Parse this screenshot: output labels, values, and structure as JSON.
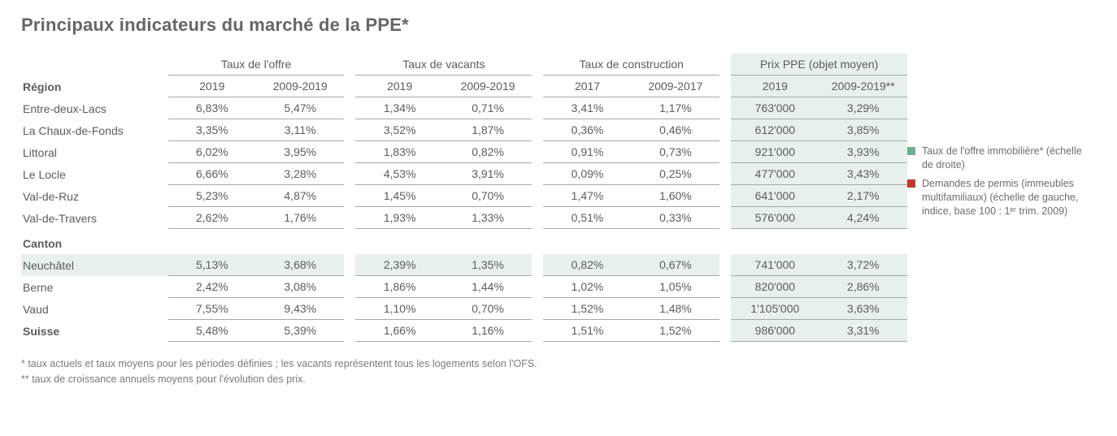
{
  "title": "Principaux indicateurs du marché de la PPE*",
  "colors": {
    "text": "#5c5c5c",
    "rule": "#a8a8a8",
    "highlight_bg": "#e7f0ea",
    "legend_green": "#6fae8f",
    "legend_red": "#c0392b",
    "background": "#ffffff"
  },
  "groups": [
    {
      "label": "Taux de l'offre",
      "sub": [
        "2019",
        "2009-2019"
      ],
      "highlight": false
    },
    {
      "label": "Taux de vacants",
      "sub": [
        "2019",
        "2009-2019"
      ],
      "highlight": false
    },
    {
      "label": "Taux de construction",
      "sub": [
        "2017",
        "2009-2017"
      ],
      "highlight": false
    },
    {
      "label": "Prix PPE (objet moyen)",
      "sub": [
        "2019",
        "2009-2019**"
      ],
      "highlight": true
    }
  ],
  "section_labels": {
    "region": "Région",
    "canton": "Canton"
  },
  "region_rows": [
    {
      "label": "Entre-deux-Lacs",
      "vals": [
        "6,83%",
        "5,47%",
        "1,34%",
        "0,71%",
        "3,41%",
        "1,17%",
        "763'000",
        "3,29%"
      ]
    },
    {
      "label": "La Chaux-de-Fonds",
      "vals": [
        "3,35%",
        "3,11%",
        "3,52%",
        "1,87%",
        "0,36%",
        "0,46%",
        "612'000",
        "3,85%"
      ]
    },
    {
      "label": "Littoral",
      "vals": [
        "6,02%",
        "3,95%",
        "1,83%",
        "0,82%",
        "0,91%",
        "0,73%",
        "921'000",
        "3,93%"
      ]
    },
    {
      "label": "Le Locle",
      "vals": [
        "6,66%",
        "3,28%",
        "4,53%",
        "3,91%",
        "0,09%",
        "0,25%",
        "477'000",
        "3,43%"
      ]
    },
    {
      "label": "Val-de-Ruz",
      "vals": [
        "5,23%",
        "4,87%",
        "1,45%",
        "0,70%",
        "1,47%",
        "1,60%",
        "641'000",
        "2,17%"
      ]
    },
    {
      "label": "Val-de-Travers",
      "vals": [
        "2,62%",
        "1,76%",
        "1,93%",
        "1,33%",
        "0,51%",
        "0,33%",
        "576'000",
        "4,24%"
      ]
    }
  ],
  "canton_rows": [
    {
      "label": "Neuchâtel",
      "vals": [
        "5,13%",
        "3,68%",
        "2,39%",
        "1,35%",
        "0,82%",
        "0,67%",
        "741'000",
        "3,72%"
      ],
      "highlight": true
    },
    {
      "label": "Berne",
      "vals": [
        "2,42%",
        "3,08%",
        "1,86%",
        "1,44%",
        "1,02%",
        "1,05%",
        "820'000",
        "2,86%"
      ]
    },
    {
      "label": "Vaud",
      "vals": [
        "7,55%",
        "9,43%",
        "1,10%",
        "0,70%",
        "1,52%",
        "1,48%",
        "1'105'000",
        "3,63%"
      ]
    }
  ],
  "total_row": {
    "label": "Suisse",
    "vals": [
      "5,48%",
      "5,39%",
      "1,66%",
      "1,16%",
      "1,51%",
      "1,52%",
      "986'000",
      "3,31%"
    ]
  },
  "footnotes": [
    "* taux actuels et taux moyens pour les périodes définies ; les vacants représentent tous les logements selon l'OFS.",
    "** taux de croissance annuels moyens pour l'évolution des prix."
  ],
  "legend": [
    {
      "color": "#6fae8f",
      "text": "Taux de l'offre immobilière* (échelle de droite)"
    },
    {
      "color": "#c0392b",
      "text": "Demandes de permis (immeubles multifamiliaux) (échelle de gauche, indice, base 100 : 1ᵉʳ trim. 2009)"
    }
  ]
}
